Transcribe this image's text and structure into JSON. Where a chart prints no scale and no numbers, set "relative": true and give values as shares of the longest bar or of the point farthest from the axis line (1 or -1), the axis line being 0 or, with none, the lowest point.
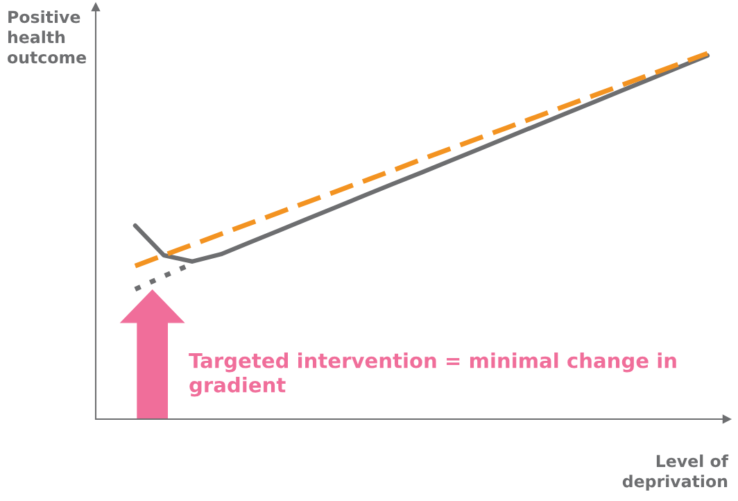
{
  "chart_data": {
    "type": "line",
    "relative": true,
    "tick_labels": false,
    "legend": false,
    "marker": "none",
    "xlabel": "Level of\ndeprivation",
    "ylabel": "Positive\nhealth\noutcome",
    "categories": [
      null,
      null,
      null,
      null,
      null,
      null,
      null,
      null,
      null,
      null,
      null,
      null,
      null,
      null,
      null,
      null,
      null,
      null,
      null,
      null,
      null
    ],
    "series": [
      {
        "color": "#6d6e70",
        "line_style": "solid",
        "values": [
          0.529,
          0.448,
          0.431,
          0.451,
          0.483,
          0.515,
          0.547,
          0.579,
          0.611,
          0.643,
          0.674,
          0.706,
          0.738,
          0.77,
          0.802,
          0.834,
          0.866,
          0.898,
          0.93,
          0.962,
          0.994
        ]
      },
      {
        "color": "#f39321",
        "line_style": "dashed",
        "values": [
          0.419,
          0.448,
          0.477,
          0.506,
          0.535,
          0.564,
          0.593,
          0.622,
          0.651,
          0.68,
          0.71,
          0.739,
          0.768,
          0.797,
          0.826,
          0.855,
          0.884,
          0.913,
          0.942,
          0.971,
          1.0
        ]
      },
      {
        "color": "#6d6e70",
        "line_style": "dotted",
        "values": [
          0.355,
          0.391,
          0.425,
          null,
          null,
          null,
          null,
          null,
          null,
          null,
          null,
          null,
          null,
          null,
          null,
          null,
          null,
          null,
          null,
          null,
          null
        ]
      }
    ],
    "annotations": [
      "Targeted intervention = minimal change in\ngradient"
    ]
  }
}
